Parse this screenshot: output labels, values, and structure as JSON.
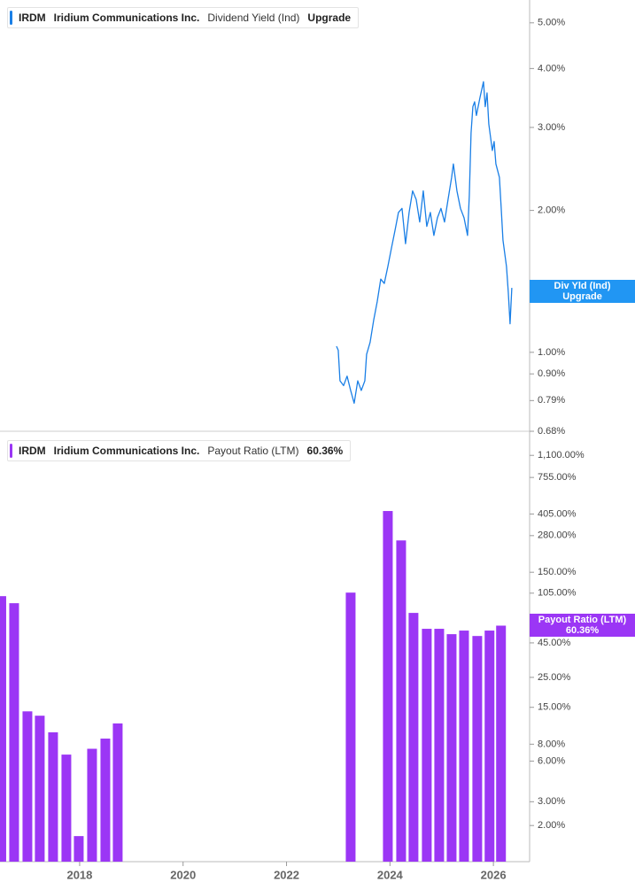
{
  "chart_data": [
    {
      "type": "line",
      "ticker": "IRDM",
      "company": "Iridium Communications Inc.",
      "status": "Upgrade",
      "tag_label": "Div Yld (Ind)",
      "log_scale": true,
      "xlim": [
        2016.46,
        2026.7
      ],
      "ylim": [
        0.68,
        5.59
      ],
      "yticks": [
        {
          "value": 5,
          "label": "5.00%"
        },
        {
          "value": 4,
          "label": "4.00%"
        },
        {
          "value": 3,
          "label": "3.00%"
        },
        {
          "value": 2,
          "label": "2.00%"
        },
        {
          "value": 1,
          "label": "1.00%"
        },
        {
          "value": 0.9,
          "label": "0.90%"
        },
        {
          "value": 0.79,
          "label": "0.79%"
        },
        {
          "value": 0.68,
          "label": "0.68%"
        }
      ],
      "x": [
        2022.966,
        2023.0,
        2023.034,
        2023.103,
        2023.171,
        2023.24,
        2023.308,
        2023.377,
        2023.445,
        2023.514,
        2023.548,
        2023.616,
        2023.685,
        2023.753,
        2023.822,
        2023.89,
        2023.959,
        2024.027,
        2024.096,
        2024.164,
        2024.233,
        2024.301,
        2024.37,
        2024.438,
        2024.507,
        2024.575,
        2024.644,
        2024.712,
        2024.781,
        2024.849,
        2024.918,
        2024.986,
        2025.055,
        2025.123,
        2025.192,
        2025.226,
        2025.295,
        2025.363,
        2025.432,
        2025.5,
        2025.534,
        2025.568,
        2025.603,
        2025.637,
        2025.671,
        2025.74,
        2025.808,
        2025.842,
        2025.877,
        2025.911,
        2025.979,
        2026.014,
        2026.048,
        2026.116,
        2026.151,
        2026.185,
        2026.253,
        2026.288,
        2026.322,
        2026.356
      ],
      "series": [
        {
          "name": "Dividend Yield (Ind)",
          "color": "#1a7fe6",
          "values": [
            1.03,
            1.01,
            0.87,
            0.85,
            0.89,
            0.83,
            0.78,
            0.87,
            0.83,
            0.87,
            0.99,
            1.05,
            1.17,
            1.28,
            1.43,
            1.4,
            1.52,
            1.66,
            1.81,
            1.98,
            2.02,
            1.7,
            1.98,
            2.2,
            2.11,
            1.89,
            2.2,
            1.85,
            1.98,
            1.77,
            1.93,
            2.02,
            1.89,
            2.11,
            2.35,
            2.51,
            2.2,
            2.02,
            1.93,
            1.77,
            2.15,
            2.92,
            3.32,
            3.4,
            3.18,
            3.47,
            3.75,
            3.32,
            3.55,
            3.05,
            2.68,
            2.8,
            2.51,
            2.35,
            2.02,
            1.73,
            1.52,
            1.34,
            1.15,
            1.37
          ]
        }
      ]
    },
    {
      "type": "bar",
      "ticker": "IRDM",
      "company": "Iridium Communications Inc.",
      "value_label": "60.36%",
      "log_scale": true,
      "xlim": [
        2016.46,
        2026.7
      ],
      "ylim": [
        1.08,
        1470
      ],
      "xticks": [
        2018,
        2020,
        2022,
        2024,
        2026
      ],
      "yticks": [
        {
          "value": 1100,
          "label": "1,100.00%"
        },
        {
          "value": 755,
          "label": "755.00%"
        },
        {
          "value": 405,
          "label": "405.00%"
        },
        {
          "value": 280,
          "label": "280.00%"
        },
        {
          "value": 150,
          "label": "150.00%"
        },
        {
          "value": 105,
          "label": "105.00%"
        },
        {
          "value": 45,
          "label": "45.00%"
        },
        {
          "value": 25,
          "label": "25.00%"
        },
        {
          "value": 15,
          "label": "15.00%"
        },
        {
          "value": 8,
          "label": "8.00%"
        },
        {
          "value": 6,
          "label": "6.00%"
        },
        {
          "value": 3,
          "label": "3.00%"
        },
        {
          "value": 2,
          "label": "2.00%"
        }
      ],
      "x": [
        2016.485,
        2016.733,
        2016.99,
        2017.229,
        2017.486,
        2017.743,
        2017.983,
        2018.24,
        2018.497,
        2018.736,
        2023.24,
        2023.959,
        2024.216,
        2024.455,
        2024.712,
        2024.952,
        2025.192,
        2025.432,
        2025.688,
        2025.925,
        2026.147
      ],
      "series": [
        {
          "name": "Payout Ratio (LTM)",
          "color": "#9b36f5",
          "values": [
            99.8,
            88.5,
            14.0,
            13.0,
            9.8,
            6.7,
            1.67,
            7.4,
            8.8,
            11.4,
            106,
            426,
            258,
            75,
            57.2,
            57.2,
            52.2,
            55.5,
            50.6,
            55.5,
            60.36
          ]
        }
      ]
    }
  ]
}
